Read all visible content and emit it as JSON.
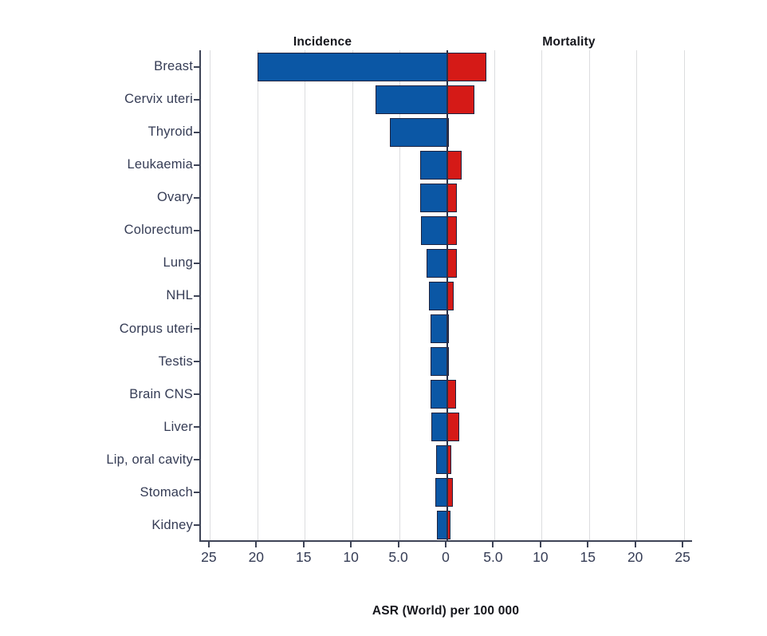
{
  "page": {
    "background_color": "#ffffff"
  },
  "chart_data": {
    "type": "bar",
    "variant": "diverging-horizontal (population-pyramid style)",
    "title_left": "Incidence",
    "title_right": "Mortality",
    "xlabel": "ASR (World) per 100 000",
    "xlim_each_side": [
      0,
      26
    ],
    "grid": true,
    "axis_ticks": [
      {
        "value": -25,
        "label": "25"
      },
      {
        "value": -20,
        "label": "20"
      },
      {
        "value": -15,
        "label": "15"
      },
      {
        "value": -10,
        "label": "10"
      },
      {
        "value": -5,
        "label": "5.0"
      },
      {
        "value": 0,
        "label": "0"
      },
      {
        "value": 5,
        "label": "5.0"
      },
      {
        "value": 10,
        "label": "10"
      },
      {
        "value": 15,
        "label": "15"
      },
      {
        "value": 20,
        "label": "20"
      },
      {
        "value": 25,
        "label": "25"
      }
    ],
    "categories": [
      "Breast",
      "Cervix uteri",
      "Thyroid",
      "Leukaemia",
      "Ovary",
      "Colorectum",
      "Lung",
      "NHL",
      "Corpus uteri",
      "Testis",
      "Brain CNS",
      "Liver",
      "Lip, oral cavity",
      "Stomach",
      "Kidney"
    ],
    "series": [
      {
        "name": "Incidence",
        "side": "left",
        "color": "#0b57a5",
        "values": [
          20.0,
          7.6,
          6.1,
          2.9,
          2.9,
          2.8,
          2.2,
          1.9,
          1.8,
          1.8,
          1.8,
          1.7,
          1.2,
          1.3,
          1.1
        ]
      },
      {
        "name": "Mortality",
        "side": "right",
        "color": "#d51a17",
        "values": [
          4.1,
          2.9,
          0.1,
          1.5,
          1.0,
          1.0,
          1.0,
          0.7,
          0.2,
          0.15,
          0.9,
          1.3,
          0.4,
          0.6,
          0.3
        ]
      }
    ],
    "colors": {
      "incidence_bar": "#0b57a5",
      "mortality_bar": "#d51a17",
      "bar_border": "#1d2340",
      "axis_line": "#3e4457",
      "zero_line": "#2a3049",
      "gridline": "#dcdddf",
      "label_text": "#353c55",
      "header_text": "#15161c"
    }
  }
}
